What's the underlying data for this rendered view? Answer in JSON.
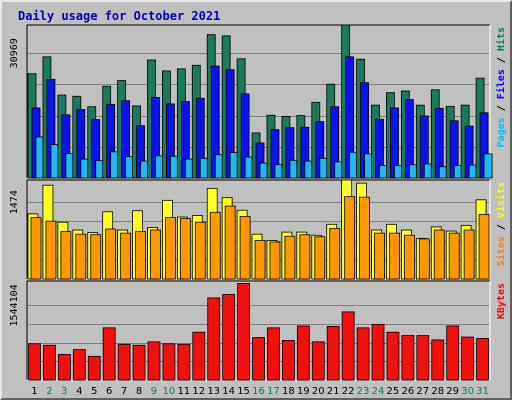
{
  "chart_data": {
    "type": "bar",
    "title": "Daily usage for October 2021",
    "categories": [
      "1",
      "2",
      "3",
      "4",
      "5",
      "6",
      "7",
      "8",
      "9",
      "10",
      "11",
      "12",
      "13",
      "14",
      "15",
      "16",
      "17",
      "18",
      "19",
      "20",
      "21",
      "22",
      "23",
      "24",
      "25",
      "26",
      "27",
      "28",
      "29",
      "30",
      "31"
    ],
    "weekend_days": [
      "2",
      "3",
      "9",
      "10",
      "16",
      "17",
      "23",
      "24",
      "30",
      "31"
    ],
    "panels": [
      {
        "id": "top",
        "tick_label": "30969",
        "tick_value": 30969,
        "ylim": [
          0,
          38000
        ],
        "right_label": [
          {
            "text": "Pages",
            "color": "#00c0ff"
          },
          {
            "text": " / ",
            "color": "#000000"
          },
          {
            "text": "Files",
            "color": "#0000ff"
          },
          {
            "text": " / ",
            "color": "#000000"
          },
          {
            "text": "Hits",
            "color": "#00805c"
          }
        ],
        "series": [
          {
            "name": "Hits",
            "color": "#1a7a5a",
            "values": [
              25900,
              30100,
              20600,
              20300,
              17700,
              22800,
              24200,
              17900,
              29300,
              26600,
              27100,
              28000,
              35600,
              35300,
              29600,
              11200,
              15600,
              15300,
              15500,
              18800,
              23300,
              38000,
              29500,
              18100,
              21200,
              21600,
              18100,
              21900,
              17800,
              18100,
              24800
            ]
          },
          {
            "name": "Files",
            "color": "#0a14e8",
            "values": [
              17400,
              24500,
              15700,
              17000,
              14500,
              18300,
              19200,
              13000,
              20000,
              18400,
              19000,
              19800,
              27800,
              26900,
              20900,
              8700,
              12000,
              12500,
              12600,
              14000,
              17700,
              30100,
              23700,
              14600,
              17400,
              19500,
              15400,
              17300,
              14200,
              12900,
              16200
            ]
          },
          {
            "name": "Pages",
            "color": "#20b8f0",
            "values": [
              10200,
              8300,
              6100,
              4700,
              4300,
              6500,
              5300,
              4200,
              5500,
              5400,
              4700,
              4900,
              5800,
              6300,
              5200,
              3700,
              3300,
              4400,
              4200,
              4900,
              4000,
              6400,
              6000,
              3100,
              3100,
              3300,
              3500,
              2800,
              3100,
              3200,
              6000
            ]
          }
        ]
      },
      {
        "id": "mid",
        "tick_label": "1474",
        "tick_value": 1474,
        "ylim": [
          0,
          1900
        ],
        "right_label": [
          {
            "text": "Sites",
            "color": "#ff8000"
          },
          {
            "text": " / ",
            "color": "#000000"
          },
          {
            "text": "Visits",
            "color": "#ffff00"
          }
        ],
        "series": [
          {
            "name": "Visits",
            "color": "#ffff20",
            "values": [
              1250,
              1800,
              1090,
              940,
              890,
              1290,
              940,
              1310,
              990,
              1510,
              1190,
              1220,
              1740,
              1560,
              1320,
              860,
              740,
              900,
              900,
              840,
              1050,
              1900,
              1840,
              940,
              1050,
              940,
              780,
              1000,
              920,
              1030,
              1520
            ]
          },
          {
            "name": "Sites",
            "color": "#ff9800",
            "values": [
              1180,
              1110,
              910,
              860,
              850,
              960,
              880,
              910,
              940,
              1180,
              1160,
              1090,
              1280,
              1400,
              1200,
              740,
              710,
              820,
              850,
              810,
              970,
              1580,
              1570,
              880,
              880,
              840,
              770,
              940,
              880,
              940,
              1240
            ]
          }
        ]
      },
      {
        "id": "bottom",
        "tick_label": "1544104",
        "tick_value": 1544104,
        "ylim": [
          0,
          2050000
        ],
        "right_label": [
          {
            "text": "KBytes",
            "color": "#ff0000"
          }
        ],
        "series": [
          {
            "name": "KBytes",
            "color": "#f01010",
            "values": [
              750000,
              720000,
              530000,
              630000,
              490000,
              1080000,
              740000,
              720000,
              790000,
              750000,
              740000,
              990000,
              1700000,
              1770000,
              2000000,
              880000,
              1080000,
              820000,
              1120000,
              790000,
              1110000,
              1410000,
              1080000,
              1150000,
              990000,
              920000,
              920000,
              830000,
              1120000,
              890000,
              860000
            ]
          }
        ]
      }
    ],
    "colors": {
      "background": "#c0c0c0",
      "title": "#0000c0",
      "weekday": "#000000",
      "weekend": "#00805c",
      "panel_border": "#000000",
      "gridline": "#808080"
    }
  }
}
